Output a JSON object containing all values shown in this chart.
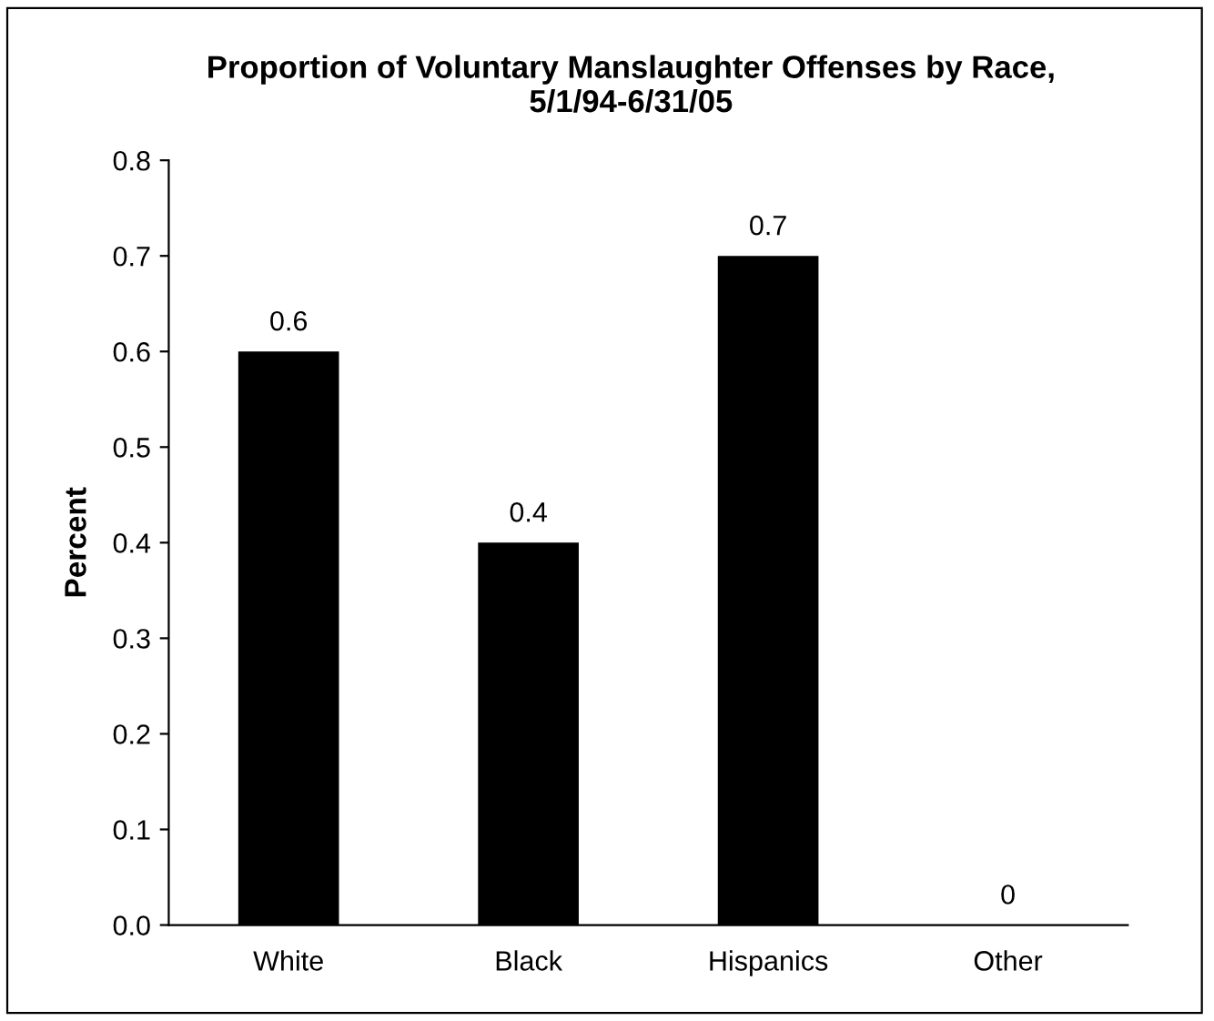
{
  "chart_data": {
    "type": "bar",
    "title": "Proportion of Voluntary Manslaughter Offenses by Race, 5/1/94-6/31/05",
    "ylabel": "Percent",
    "categories": [
      "White",
      "Black",
      "Hispanics",
      "Other"
    ],
    "values": [
      0.6,
      0.4,
      0.7,
      0
    ],
    "color": "#000000",
    "ylim": [
      0,
      0.8
    ],
    "yticks": [
      {
        "value": 0,
        "label": "0.0"
      },
      0.1,
      0.2,
      0.3,
      0.4,
      0.5,
      0.6,
      0.7,
      0.8
    ],
    "data_labels": true,
    "grid": false,
    "legend": false
  }
}
